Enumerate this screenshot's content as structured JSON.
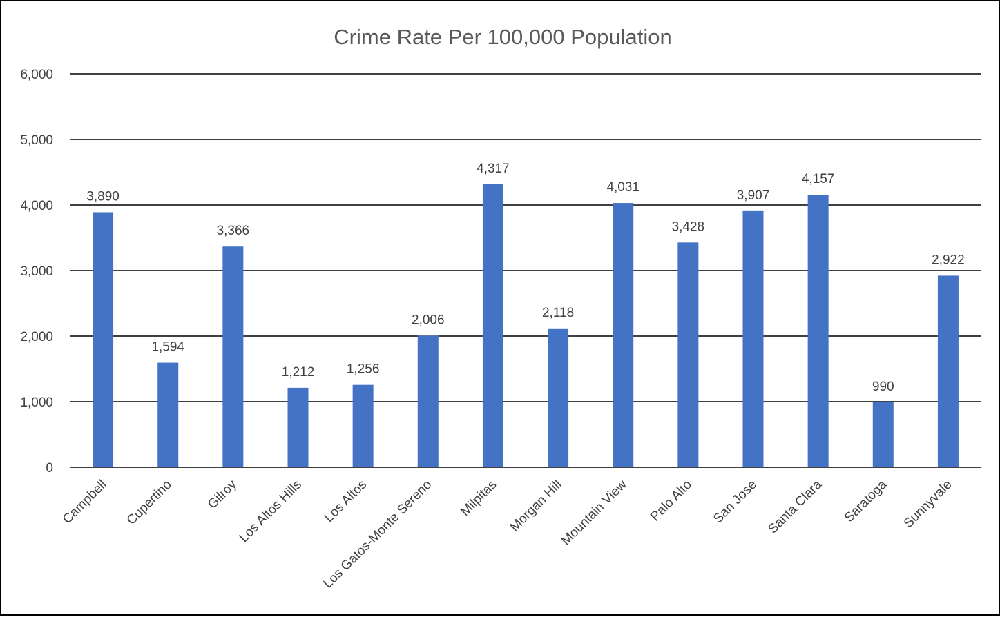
{
  "chart_data": {
    "type": "bar",
    "title": "Crime Rate Per 100,000 Population",
    "xlabel": "",
    "ylabel": "",
    "categories": [
      "Campbell",
      "Cupertino",
      "Gilroy",
      "Los Altos Hills",
      "Los Altos",
      "Los Gatos-Monte Sereno",
      "Milpitas",
      "Morgan Hill",
      "Mountain View",
      "Palo Alto",
      "San Jose",
      "Santa Clara",
      "Saratoga",
      "Sunnyvale"
    ],
    "values": [
      3890,
      1594,
      3366,
      1212,
      1256,
      2006,
      4317,
      2118,
      4031,
      3428,
      3907,
      4157,
      990,
      2922
    ],
    "data_labels": [
      "3,890",
      "1,594",
      "3,366",
      "1,212",
      "1,256",
      "2,006",
      "4,317",
      "2,118",
      "4,031",
      "3,428",
      "3,907",
      "4,157",
      "990",
      "2,922"
    ],
    "ylim": [
      0,
      6000
    ],
    "y_ticks": [
      0,
      1000,
      2000,
      3000,
      4000,
      5000,
      6000
    ],
    "y_tick_labels": [
      "0",
      "1,000",
      "2,000",
      "3,000",
      "4,000",
      "5,000",
      "6,000"
    ],
    "grid": true,
    "legend": "none",
    "colors": {
      "bar": "#4472C4",
      "gridline": "#000000"
    }
  }
}
